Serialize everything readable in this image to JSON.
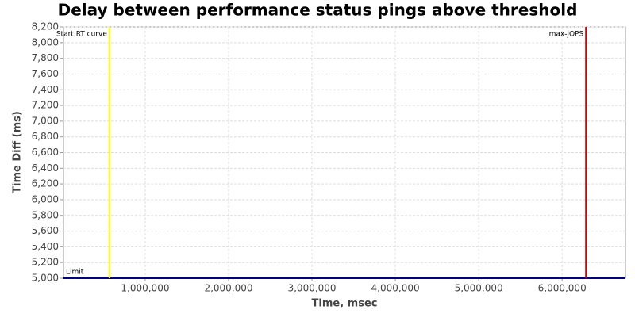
{
  "chart_data": {
    "type": "line",
    "title": "Delay between performance status pings above threshold",
    "x_label": "Time, msec",
    "y_label": "Time Diff (ms)",
    "xlim": [
      20000,
      6760000
    ],
    "ylim": [
      5000,
      8200
    ],
    "xticks": [
      {
        "value": 1000000,
        "label": "1,000,000"
      },
      {
        "value": 2000000,
        "label": "2,000,000"
      },
      {
        "value": 3000000,
        "label": "3,000,000"
      },
      {
        "value": 4000000,
        "label": "4,000,000"
      },
      {
        "value": 5000000,
        "label": "5,000,000"
      },
      {
        "value": 6000000,
        "label": "6,000,000"
      }
    ],
    "yticks": [
      {
        "value": 5000,
        "label": "5,000"
      },
      {
        "value": 5200,
        "label": "5,200"
      },
      {
        "value": 5400,
        "label": "5,400"
      },
      {
        "value": 5600,
        "label": "5,600"
      },
      {
        "value": 5800,
        "label": "5,800"
      },
      {
        "value": 6000,
        "label": "6,000"
      },
      {
        "value": 6200,
        "label": "6,200"
      },
      {
        "value": 6400,
        "label": "6,400"
      },
      {
        "value": 6600,
        "label": "6,600"
      },
      {
        "value": 6800,
        "label": "6,800"
      },
      {
        "value": 7000,
        "label": "7,000"
      },
      {
        "value": 7200,
        "label": "7,200"
      },
      {
        "value": 7400,
        "label": "7,400"
      },
      {
        "value": 7600,
        "label": "7,600"
      },
      {
        "value": 7800,
        "label": "7,800"
      },
      {
        "value": 8000,
        "label": "8,000"
      },
      {
        "value": 8200,
        "label": "8,200"
      }
    ],
    "grid": true,
    "x_markers": [
      {
        "label": "Start RT curve",
        "value": 571000,
        "color": "#ffff00"
      },
      {
        "label": "max-jOPS",
        "value": 6286000,
        "color": "#dd0000"
      }
    ],
    "y_markers": [
      {
        "label": "Limit",
        "value": 5000,
        "color": "#000080"
      }
    ]
  }
}
